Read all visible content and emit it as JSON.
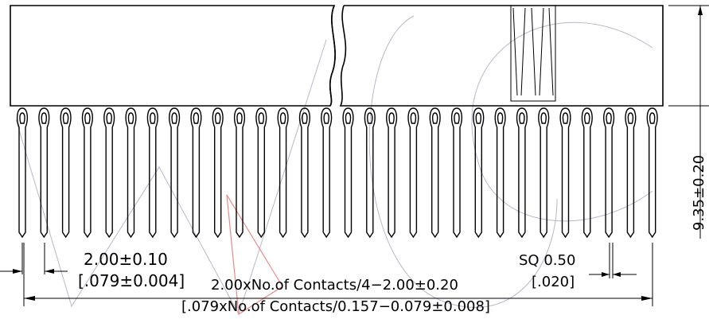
{
  "dimensions": {
    "pitch": "2.00±0.10",
    "pitch_inch": "[.079±0.004]",
    "length": "2.00xNo.of Contacts/4−2.00±0.20",
    "length_inch": "[.079xNo.of Contacts/0.157−0.079±0.008]",
    "pin_square": "SQ 0.50",
    "pin_square_inch": "[.020]",
    "height": "9.35±0.20"
  }
}
